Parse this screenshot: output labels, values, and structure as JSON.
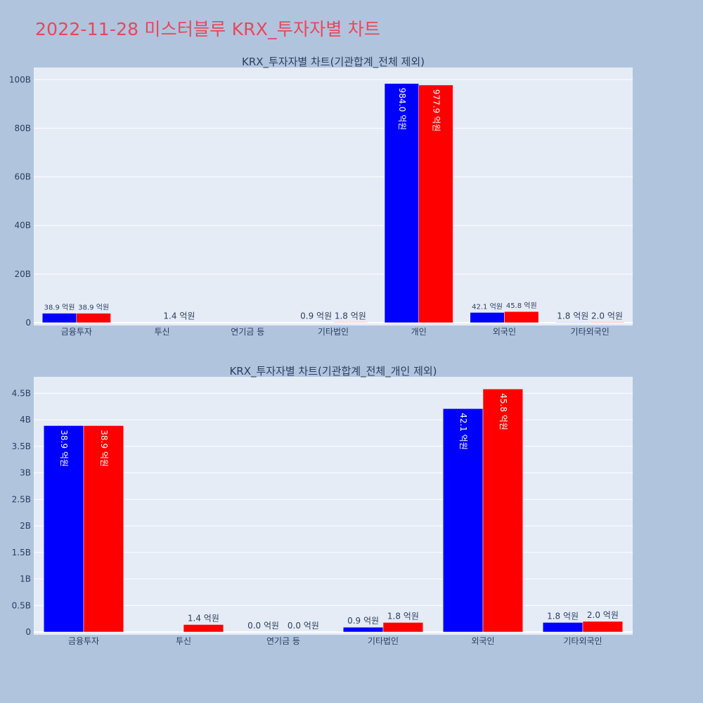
{
  "page_title": "2022-11-28 미스터블루 KRX_투자자별 차트",
  "colors": {
    "sell": "#0000ff",
    "buy": "#ff0000",
    "background": "#b0c4de",
    "plot_bg": "#e5ecf6",
    "title": "#e8475a"
  },
  "chart_data": [
    {
      "type": "bar",
      "title": "KRX_투자자별 차트(기관합계_전체 제외)",
      "categories": [
        "금융투자",
        "투신",
        "연기금 등",
        "기타법인",
        "개인",
        "외국인",
        "기타외국인"
      ],
      "ylim": [
        0,
        105
      ],
      "yticks": [
        0,
        20,
        40,
        60,
        80,
        100
      ],
      "ytick_labels": [
        "0",
        "20B",
        "40B",
        "60B",
        "80B",
        "100B"
      ],
      "grid": true,
      "series": [
        {
          "color": "#0000ff",
          "values": [
            3.89,
            0,
            0,
            0.09,
            98.4,
            4.21,
            0.18
          ],
          "labels": [
            "38.9 억원",
            "",
            "",
            "0.9 억원",
            "984.0 억원",
            "42.1 억원",
            "1.8 억원"
          ]
        },
        {
          "color": "#ff0000",
          "values": [
            3.89,
            0.14,
            0,
            0.18,
            97.79,
            4.58,
            0.2
          ],
          "labels": [
            "38.9 억원",
            "1.4 억원",
            "",
            "1.8 억원",
            "977.9 억원",
            "45.8 억원",
            "2.0 억원"
          ]
        }
      ]
    },
    {
      "type": "bar",
      "title": "KRX_투자자별 차트(기관합계_전체_개인 제외)",
      "categories": [
        "금융투자",
        "투신",
        "연기금 등",
        "기타법인",
        "외국인",
        "기타외국인"
      ],
      "ylim": [
        0,
        4.81
      ],
      "yticks": [
        0,
        0.5,
        1,
        1.5,
        2,
        2.5,
        3,
        3.5,
        4,
        4.5
      ],
      "ytick_labels": [
        "0",
        "0.5B",
        "1B",
        "1.5B",
        "2B",
        "2.5B",
        "3B",
        "3.5B",
        "4B",
        "4.5B"
      ],
      "grid": true,
      "series": [
        {
          "color": "#0000ff",
          "values": [
            3.89,
            0,
            0,
            0.09,
            4.21,
            0.18
          ],
          "labels": [
            "38.9 억원",
            "",
            "0.0 억원",
            "0.9 억원",
            "42.1 억원",
            "1.8 억원"
          ]
        },
        {
          "color": "#ff0000",
          "values": [
            3.89,
            0.14,
            0,
            0.18,
            4.58,
            0.2
          ],
          "labels": [
            "38.9 억원",
            "1.4 억원",
            "0.0 억원",
            "1.8 억원",
            "45.8 억원",
            "2.0 억원"
          ]
        }
      ]
    }
  ]
}
